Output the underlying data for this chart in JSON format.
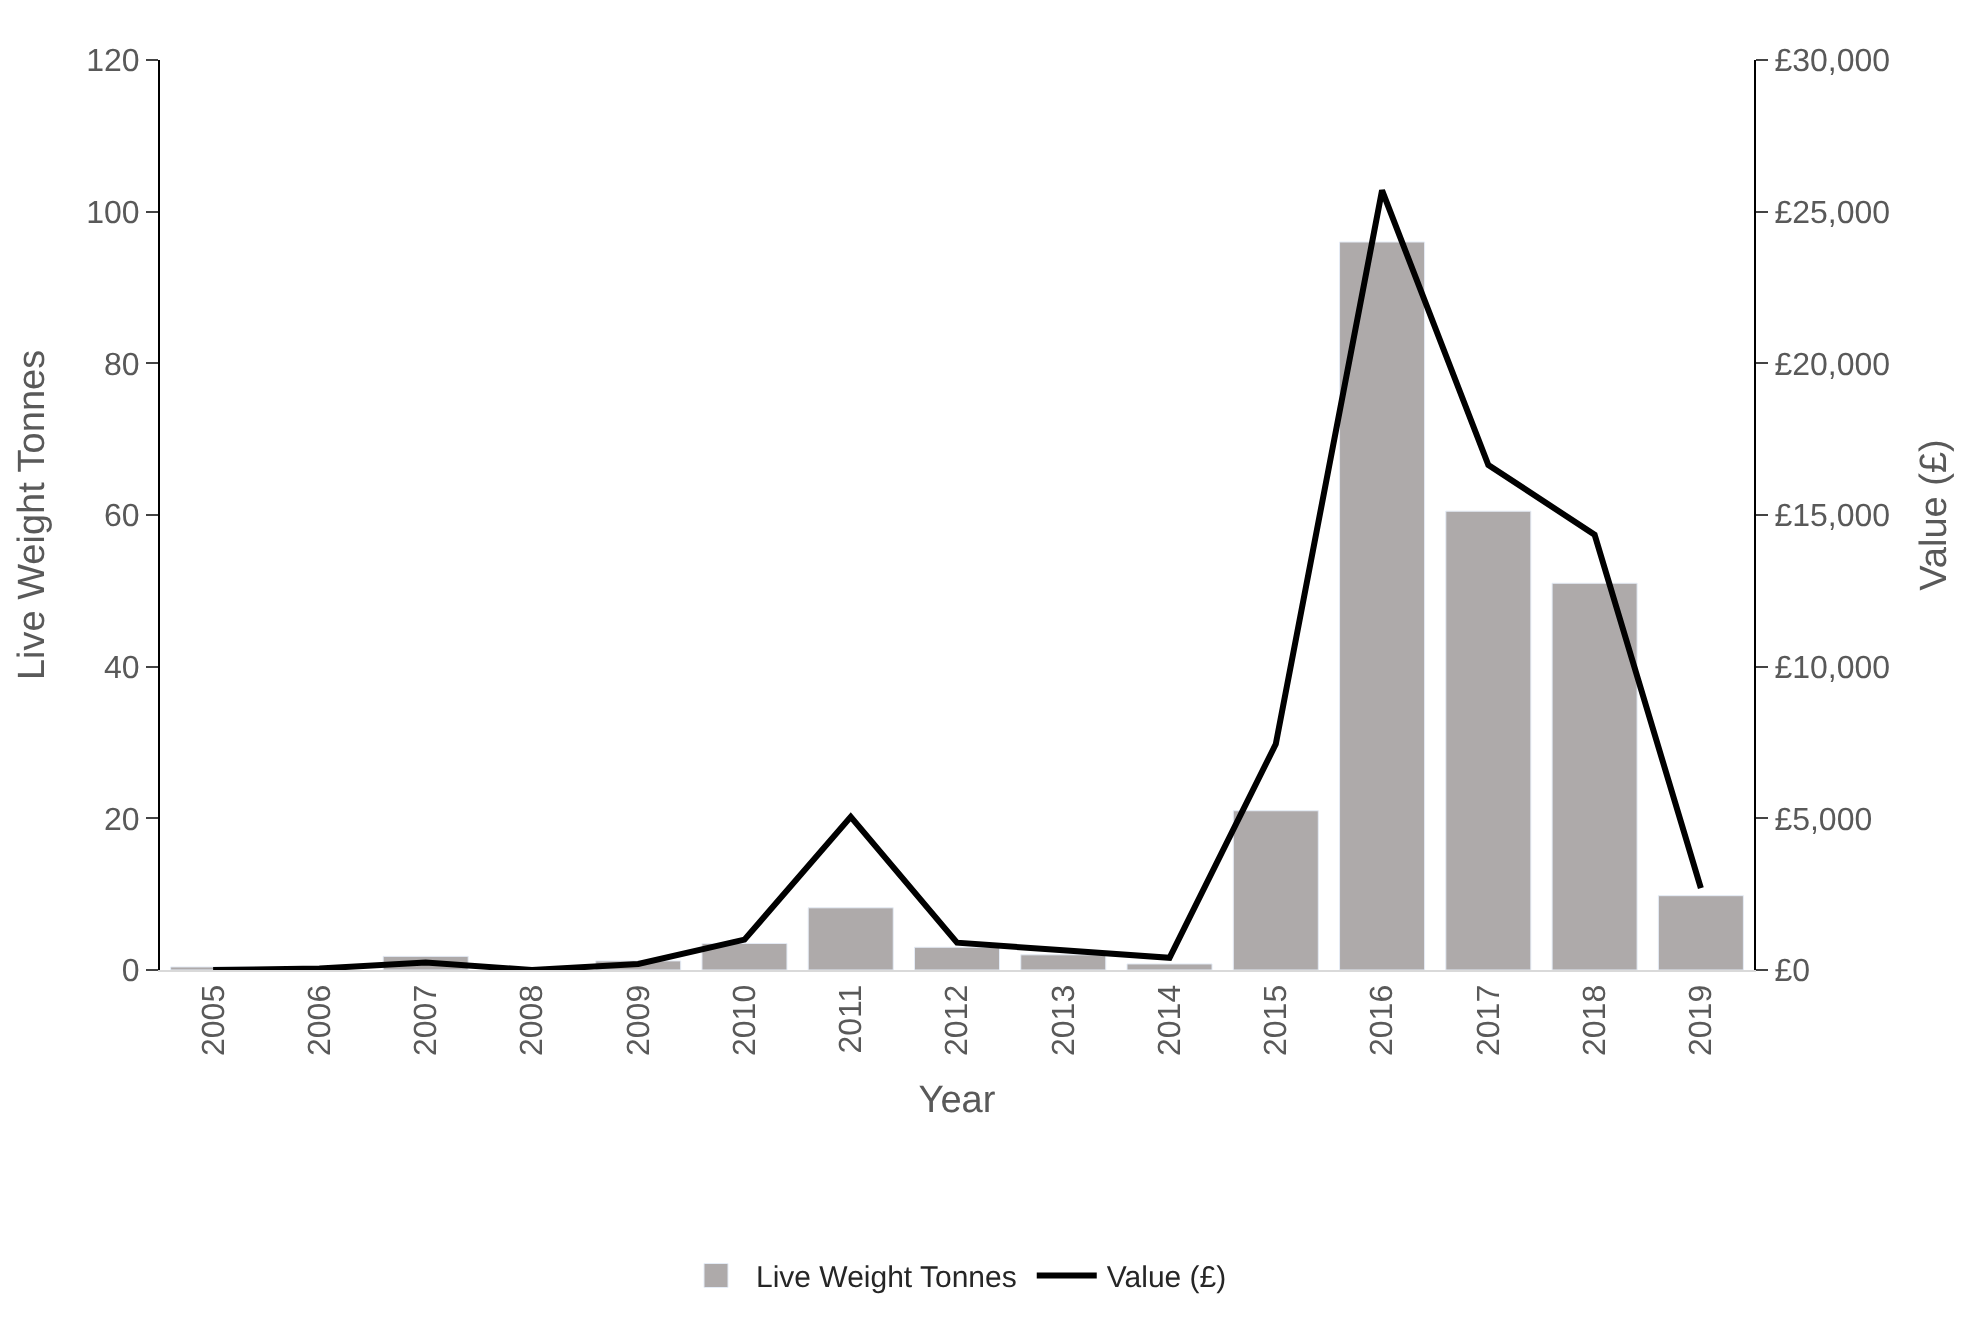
{
  "chart_data": {
    "type": "bar",
    "xlabel": "Year",
    "ylabel": "Live Weight Tonnes",
    "y2label": "Value (£)",
    "categories": [
      "2005",
      "2006",
      "2007",
      "2008",
      "2009",
      "2010",
      "2011",
      "2012",
      "2013",
      "2014",
      "2015",
      "2016",
      "2017",
      "2018",
      "2019"
    ],
    "series": [
      {
        "name": "Live Weight Tonnes",
        "color": "#aeaaaa",
        "values": [
          0.4,
          null,
          1.8,
          0.1,
          1.2,
          3.5,
          8.2,
          3,
          2,
          0.8,
          21,
          96,
          60.5,
          51,
          9.8
        ]
      },
      {
        "name": "Value (£)",
        "type": "line",
        "axis": "y2",
        "color": "#000000",
        "values": [
          0,
          50,
          250,
          0,
          200,
          1000,
          5050,
          900,
          650,
          400,
          7450,
          25700,
          16650,
          14350,
          2700
        ]
      }
    ],
    "ylim": [
      0,
      120
    ],
    "yticks": [
      0,
      20,
      40,
      60,
      80,
      100,
      120
    ],
    "y2lim": [
      0,
      30000
    ],
    "y2ticks": [
      {
        "value": 0,
        "label": "£0"
      },
      {
        "value": 5000,
        "label": "£5,000"
      },
      {
        "value": 10000,
        "label": "£10,000"
      },
      {
        "value": 15000,
        "label": "£15,000"
      },
      {
        "value": 20000,
        "label": "£20,000"
      },
      {
        "value": 25000,
        "label": "£25,000"
      },
      {
        "value": 30000,
        "label": "£30,000"
      }
    ],
    "legend": "bottom",
    "marker": "none",
    "line_style": "solid"
  }
}
